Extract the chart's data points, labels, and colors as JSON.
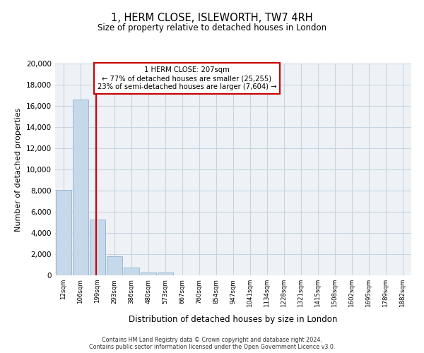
{
  "title": "1, HERM CLOSE, ISLEWORTH, TW7 4RH",
  "subtitle": "Size of property relative to detached houses in London",
  "xlabel": "Distribution of detached houses by size in London",
  "ylabel": "Number of detached properties",
  "bar_labels": [
    "12sqm",
    "106sqm",
    "199sqm",
    "293sqm",
    "386sqm",
    "480sqm",
    "573sqm",
    "667sqm",
    "760sqm",
    "854sqm",
    "947sqm",
    "1041sqm",
    "1134sqm",
    "1228sqm",
    "1321sqm",
    "1415sqm",
    "1508sqm",
    "1602sqm",
    "1695sqm",
    "1789sqm",
    "1882sqm"
  ],
  "bar_values": [
    8100,
    16600,
    5300,
    1800,
    750,
    275,
    275,
    0,
    0,
    0,
    0,
    0,
    0,
    0,
    0,
    0,
    0,
    0,
    0,
    0,
    0
  ],
  "bar_color": "#c6d9ea",
  "bar_edgecolor": "#9ab8d0",
  "marker_label": "1 HERM CLOSE: 207sqm",
  "annotation_line1": "← 77% of detached houses are smaller (25,255)",
  "annotation_line2": "23% of semi-detached houses are larger (7,604) →",
  "vline_color": "#cc0000",
  "vline_x": 1.92,
  "ylim": [
    0,
    20000
  ],
  "yticks": [
    0,
    2000,
    4000,
    6000,
    8000,
    10000,
    12000,
    14000,
    16000,
    18000,
    20000
  ],
  "box_facecolor": "#ffffff",
  "box_edgecolor": "#cc0000",
  "background_color": "#eef2f7",
  "grid_color": "#c8d4e0",
  "footer_line1": "Contains HM Land Registry data © Crown copyright and database right 2024.",
  "footer_line2": "Contains public sector information licensed under the Open Government Licence v3.0."
}
